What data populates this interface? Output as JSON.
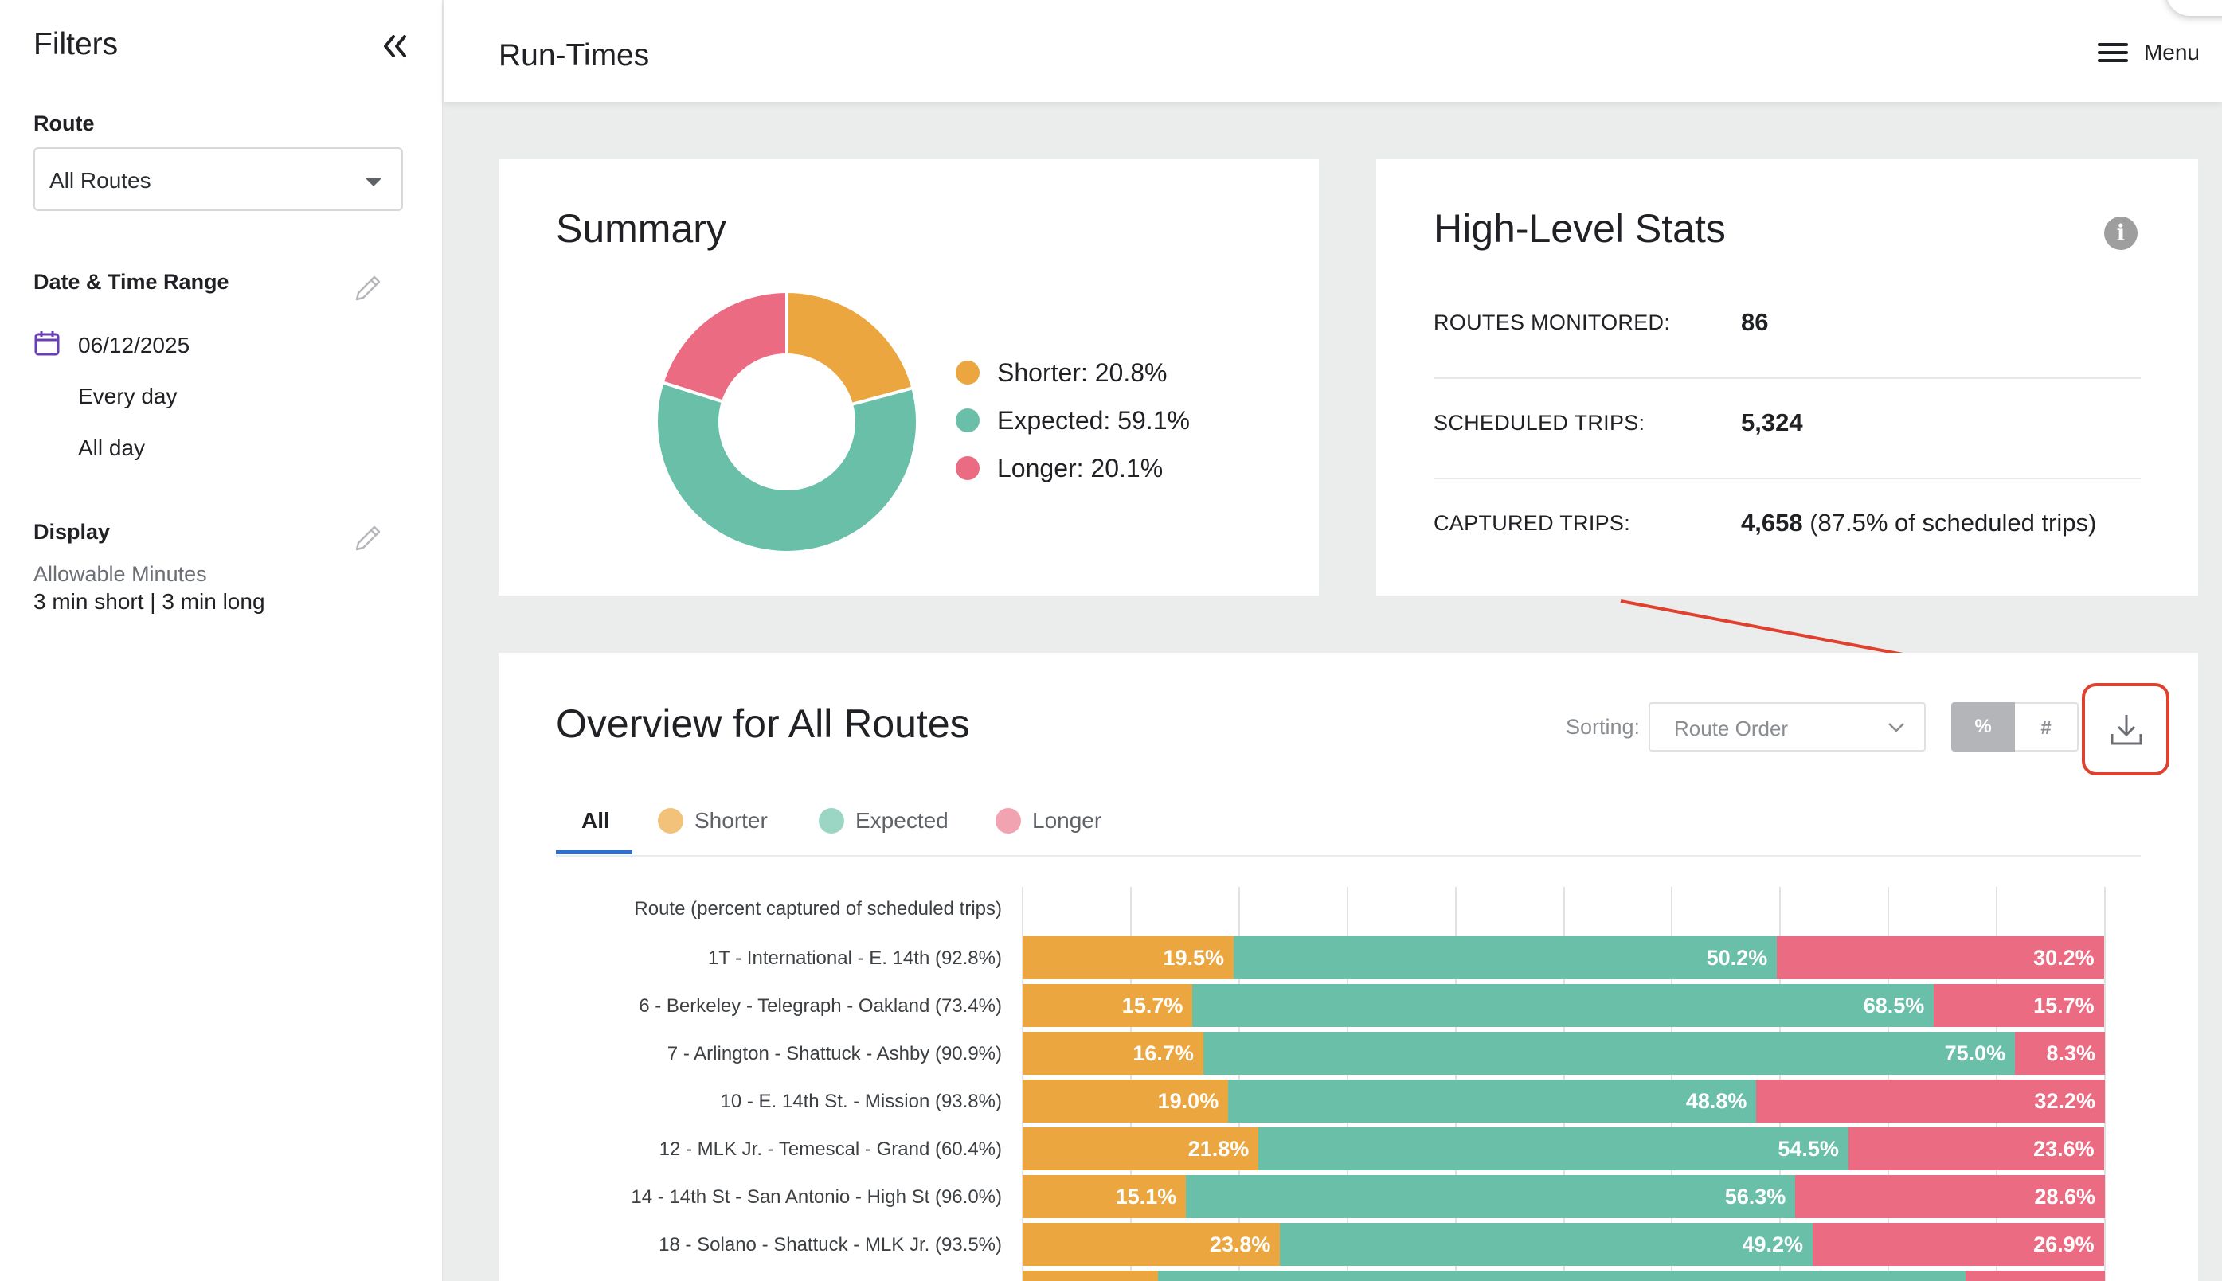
{
  "sidebar": {
    "title": "Filters",
    "route_label": "Route",
    "route_value": "All Routes",
    "date_section_label": "Date & Time Range",
    "date": "06/12/2025",
    "days": "Every day",
    "times": "All day",
    "display_label": "Display",
    "allowable_label": "Allowable Minutes",
    "allowable_value": "3 min short | 3 min long"
  },
  "header": {
    "title": "Run-Times",
    "menu_label": "Menu"
  },
  "summary": {
    "title": "Summary",
    "legend": [
      {
        "label": "Shorter: 20.8%",
        "color": "#eba63f"
      },
      {
        "label": "Expected: 59.1%",
        "color": "#6abfa8"
      },
      {
        "label": "Longer: 20.1%",
        "color": "#eb6b82"
      }
    ]
  },
  "stats": {
    "title": "High-Level Stats",
    "rows": [
      {
        "label": "ROUTES MONITORED:",
        "value": "86",
        "extra": ""
      },
      {
        "label": "SCHEDULED TRIPS:",
        "value": "5,324",
        "extra": ""
      },
      {
        "label": "CAPTURED TRIPS:",
        "value": "4,658",
        "extra": "(87.5% of scheduled trips)"
      }
    ]
  },
  "overview": {
    "title": "Overview for All Routes",
    "sorting_label": "Sorting:",
    "sorting_value": "Route Order",
    "toggle_percent": "%",
    "toggle_count": "#",
    "tabs": [
      {
        "label": "All"
      },
      {
        "label": "Shorter",
        "color": "#f2c27a"
      },
      {
        "label": "Expected",
        "color": "#9bd6c5"
      },
      {
        "label": "Longer",
        "color": "#f2a3b1"
      }
    ],
    "column_header": "Route (percent captured of scheduled trips)"
  },
  "colors": {
    "shorter": "#eba63f",
    "expected": "#6abfa8",
    "longer": "#eb6b82",
    "highlight": "#e0402e"
  },
  "chart_data": [
    {
      "type": "pie",
      "categories": [
        "Shorter",
        "Expected",
        "Longer"
      ],
      "values": [
        20.8,
        59.1,
        20.1
      ]
    },
    {
      "type": "bar",
      "orientation": "horizontal",
      "stacked": true,
      "categories": [
        "1T - International - E. 14th  (92.8%)",
        "6 - Berkeley - Telegraph - Oakland  (73.4%)",
        "7 - Arlington - Shattuck - Ashby  (90.9%)",
        "10 - E. 14th St. - Mission  (93.8%)",
        "12 - MLK Jr. - Temescal - Grand  (60.4%)",
        "14 - 14th St - San Antonio - High St  (96.0%)",
        "18 - Solano - Shattuck - MLK Jr.  (93.5%)"
      ],
      "series": [
        {
          "name": "Shorter",
          "values": [
            19.5,
            15.7,
            16.7,
            19.0,
            21.8,
            15.1,
            23.8
          ],
          "labels": [
            "19.5%",
            "15.7%",
            "16.7%",
            "19.0%",
            "21.8%",
            "15.1%",
            "23.8%"
          ]
        },
        {
          "name": "Expected",
          "values": [
            50.2,
            68.5,
            75.0,
            48.8,
            54.5,
            56.3,
            49.2
          ],
          "labels": [
            "50.2%",
            "68.5%",
            "75.0%",
            "48.8%",
            "54.5%",
            "56.3%",
            "49.2%"
          ]
        },
        {
          "name": "Longer",
          "values": [
            30.2,
            15.7,
            8.3,
            32.2,
            23.6,
            28.6,
            26.9
          ],
          "labels": [
            "30.2%",
            "15.7%",
            "8.3%",
            "32.2%",
            "23.6%",
            "28.6%",
            "26.9%"
          ]
        }
      ],
      "xlim": [
        0,
        100
      ],
      "grid": true
    }
  ]
}
